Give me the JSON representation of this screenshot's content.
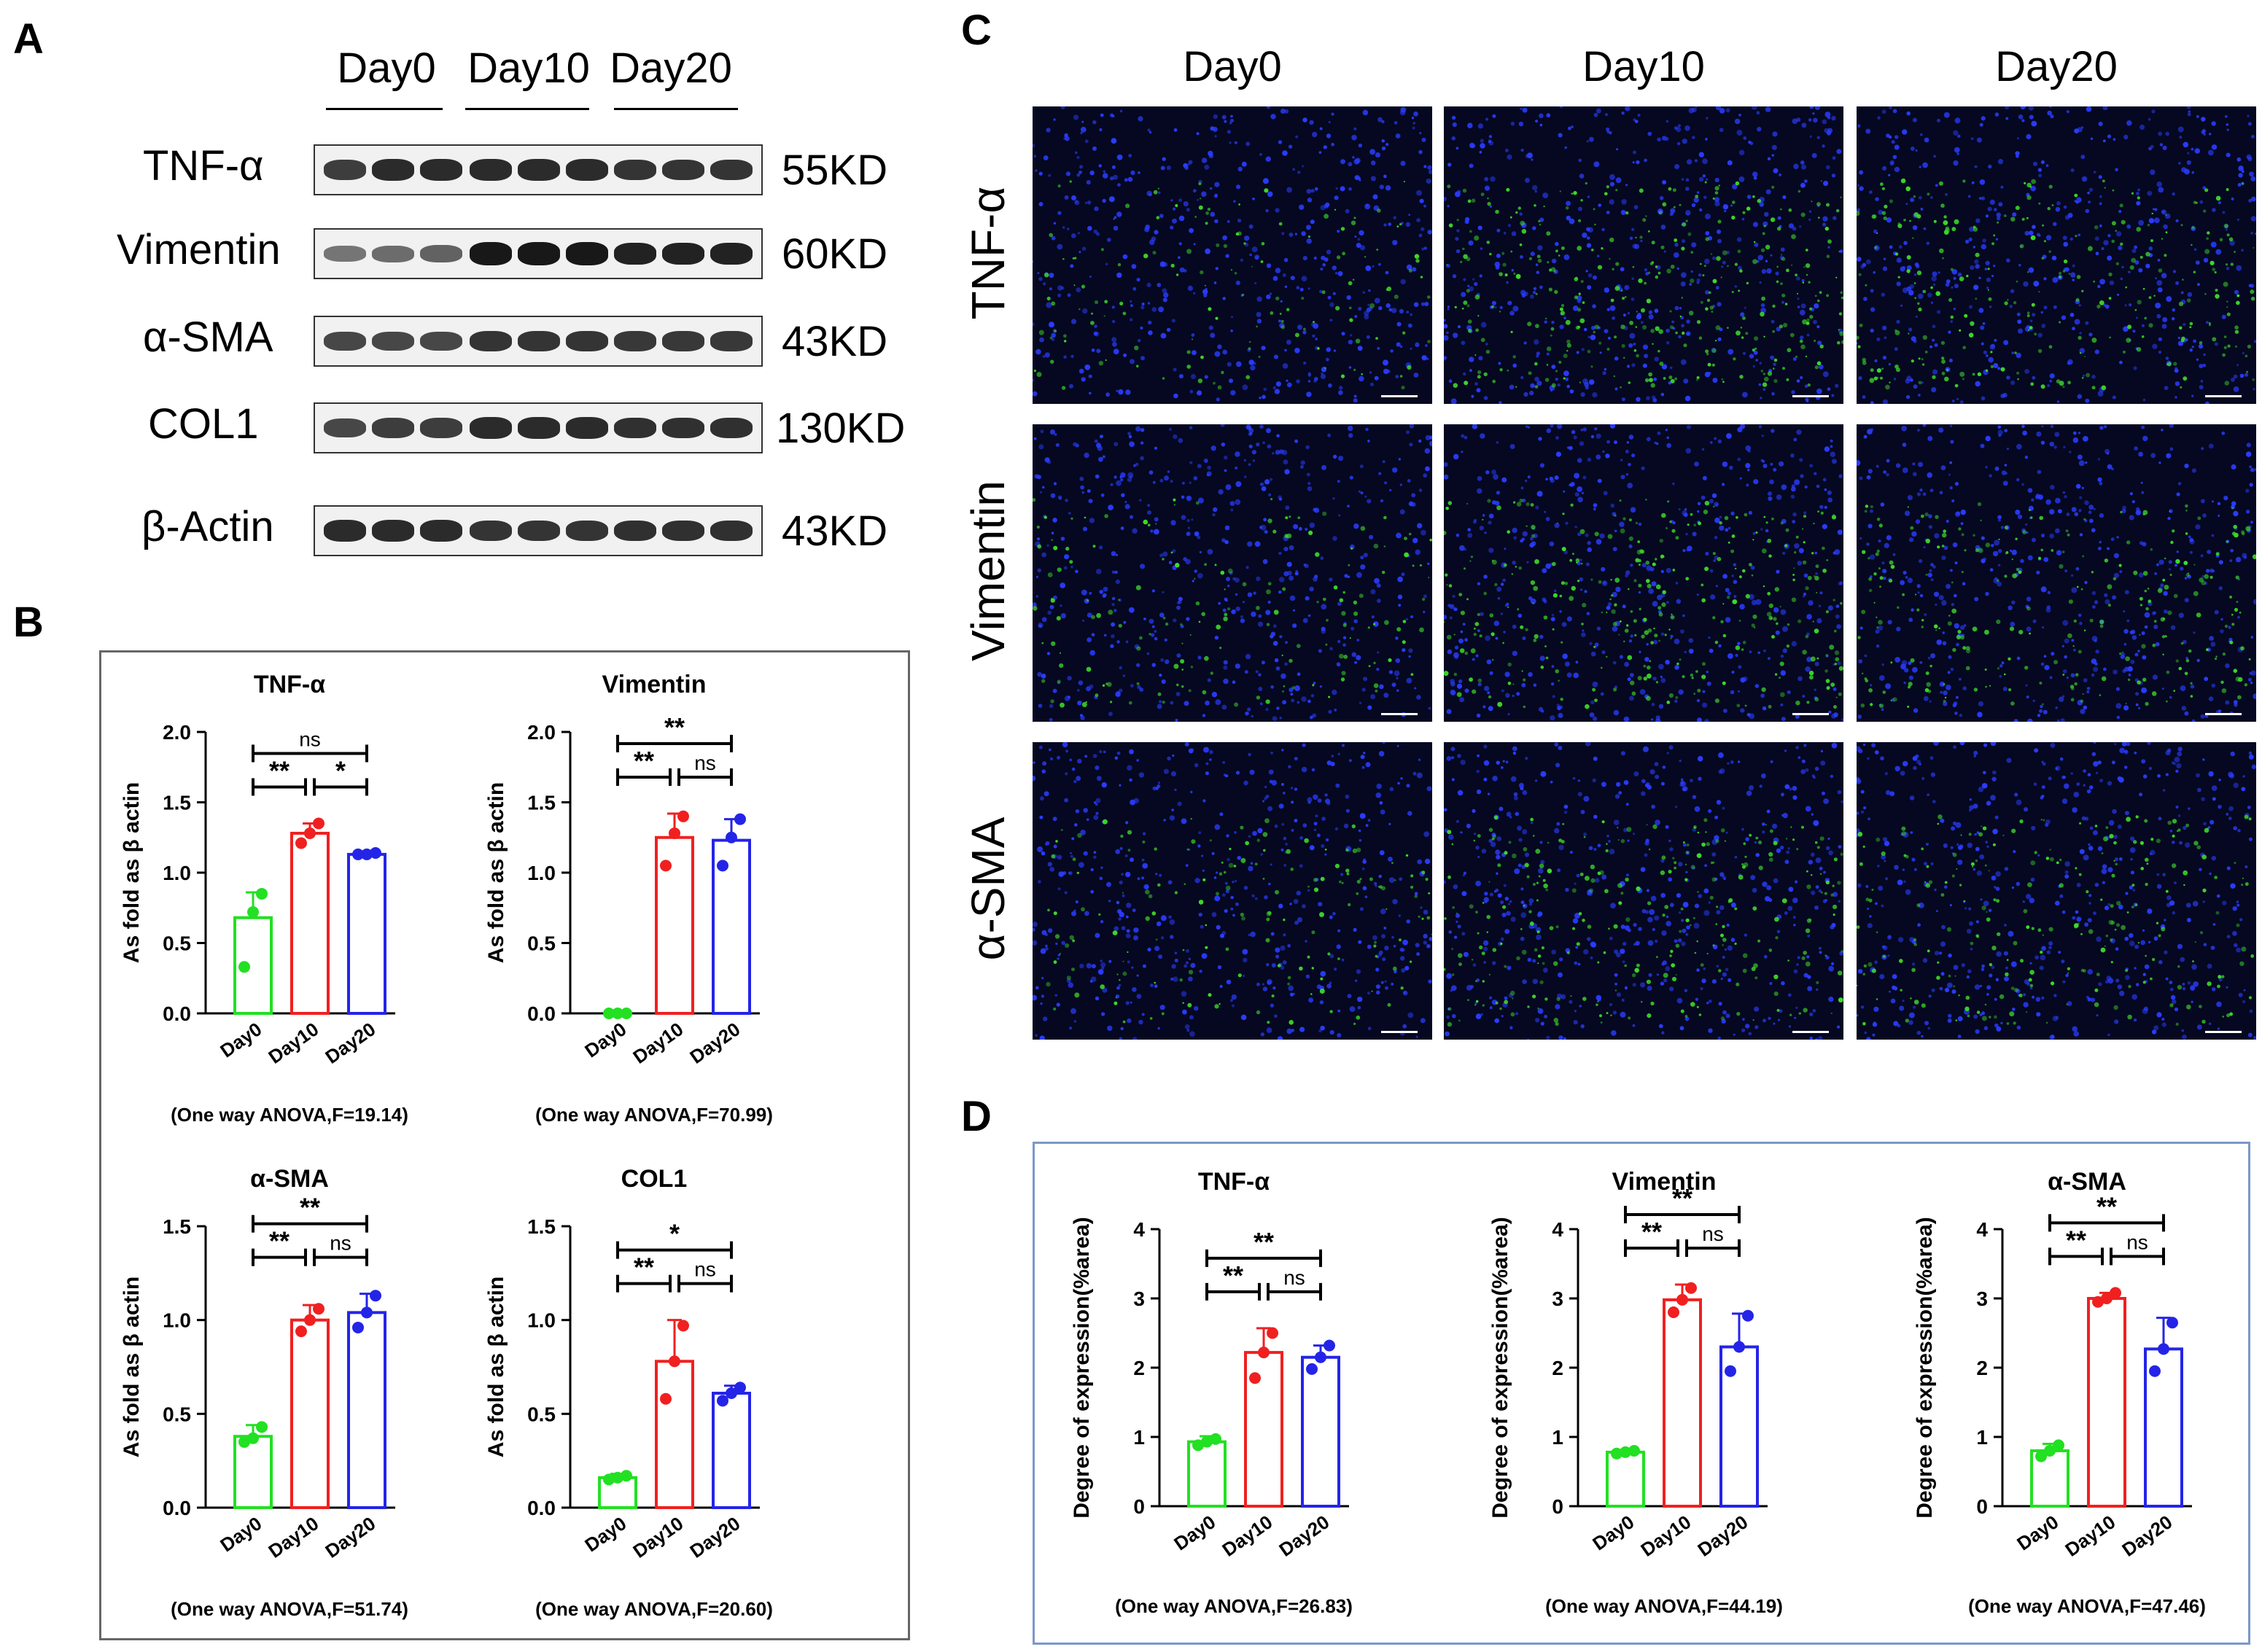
{
  "panels": {
    "a": "A",
    "b": "B",
    "c": "C",
    "d": "D"
  },
  "blot": {
    "days": [
      "Day0",
      "Day10",
      "Day20"
    ],
    "rows": [
      {
        "label": "TNF-α",
        "size": "55KD",
        "intensity": [
          0.75,
          0.85,
          0.85,
          0.85,
          0.85,
          0.85,
          0.8,
          0.8,
          0.8
        ]
      },
      {
        "label": "Vimentin",
        "size": "60KD",
        "intensity": [
          0.45,
          0.5,
          0.55,
          0.95,
          0.95,
          0.95,
          0.9,
          0.9,
          0.9
        ]
      },
      {
        "label": "α-SMA",
        "size": "43KD",
        "intensity": [
          0.7,
          0.7,
          0.7,
          0.8,
          0.8,
          0.8,
          0.78,
          0.78,
          0.78
        ]
      },
      {
        "label": "COL1",
        "size": "130KD",
        "intensity": [
          0.7,
          0.75,
          0.75,
          0.85,
          0.85,
          0.85,
          0.82,
          0.82,
          0.82
        ]
      },
      {
        "label": "β-Actin",
        "size": "43KD",
        "intensity": [
          0.85,
          0.85,
          0.85,
          0.8,
          0.8,
          0.8,
          0.82,
          0.82,
          0.82
        ]
      }
    ]
  },
  "micrographs": {
    "columns": [
      "Day0",
      "Day10",
      "Day20"
    ],
    "rows": [
      "TNF-α",
      "Vimentin",
      "α-SMA"
    ],
    "green_density": [
      [
        0.15,
        0.6,
        0.45
      ],
      [
        0.2,
        0.55,
        0.4
      ],
      [
        0.2,
        0.45,
        0.35
      ]
    ],
    "colors": {
      "nuclei": "#2a3cff",
      "marker": "#3ddc2a",
      "background": "#050820"
    }
  },
  "colors": {
    "day0": "#22e022",
    "day10": "#f02020",
    "day20": "#2424e8",
    "panel_border_b": "#666666",
    "panel_border_d": "#7a98c8"
  },
  "chart_data": [
    {
      "panel": "B",
      "type": "bar",
      "title": "TNF-α",
      "ylabel": "As fold as β actin",
      "categories": [
        "Day0",
        "Day10",
        "Day20"
      ],
      "values": [
        0.68,
        1.28,
        1.13
      ],
      "errors": [
        0.18,
        0.07,
        0.01
      ],
      "points": [
        [
          0.33,
          0.72,
          0.85
        ],
        [
          1.21,
          1.28,
          1.35
        ],
        [
          1.13,
          1.13,
          1.14
        ]
      ],
      "ylim": [
        0,
        2.0
      ],
      "yticks": [
        "0.0",
        "0.5",
        "1.0",
        "1.5",
        "2.0"
      ],
      "brackets": [
        {
          "from": 0,
          "to": 1,
          "label": "**",
          "level": 0
        },
        {
          "from": 1,
          "to": 2,
          "label": "*",
          "level": 0
        },
        {
          "from": 0,
          "to": 2,
          "label": "ns",
          "level": 1
        }
      ],
      "footer": "(One way ANOVA,F=19.14)"
    },
    {
      "panel": "B",
      "type": "bar",
      "title": "Vimentin",
      "ylabel": "As fold as β actin",
      "categories": [
        "Day0",
        "Day10",
        "Day20"
      ],
      "values": [
        0.0,
        1.25,
        1.23
      ],
      "errors": [
        0.0,
        0.17,
        0.15
      ],
      "points": [
        [
          0.0,
          0.0,
          0.0
        ],
        [
          1.05,
          1.28,
          1.4
        ],
        [
          1.05,
          1.25,
          1.38
        ]
      ],
      "ylim": [
        0,
        2.0
      ],
      "yticks": [
        "0.0",
        "0.5",
        "1.0",
        "1.5",
        "2.0"
      ],
      "brackets": [
        {
          "from": 0,
          "to": 1,
          "label": "**",
          "level": 0
        },
        {
          "from": 1,
          "to": 2,
          "label": "ns",
          "level": 0
        },
        {
          "from": 0,
          "to": 2,
          "label": "**",
          "level": 1
        }
      ],
      "footer": "(One way ANOVA,F=70.99)"
    },
    {
      "panel": "B",
      "type": "bar",
      "title": "α-SMA",
      "ylabel": "As fold as β actin",
      "categories": [
        "Day0",
        "Day10",
        "Day20"
      ],
      "values": [
        0.38,
        1.0,
        1.04
      ],
      "errors": [
        0.06,
        0.08,
        0.1
      ],
      "points": [
        [
          0.35,
          0.37,
          0.43
        ],
        [
          0.94,
          1.0,
          1.06
        ],
        [
          0.96,
          1.04,
          1.13
        ]
      ],
      "ylim": [
        0,
        1.5
      ],
      "yticks": [
        "0.0",
        "0.5",
        "1.0",
        "1.5"
      ],
      "brackets": [
        {
          "from": 0,
          "to": 1,
          "label": "**",
          "level": 0
        },
        {
          "from": 1,
          "to": 2,
          "label": "ns",
          "level": 0
        },
        {
          "from": 0,
          "to": 2,
          "label": "**",
          "level": 1
        }
      ],
      "footer": "(One way ANOVA,F=51.74)"
    },
    {
      "panel": "B",
      "type": "bar",
      "title": "COL1",
      "ylabel": "As fold as β actin",
      "categories": [
        "Day0",
        "Day10",
        "Day20"
      ],
      "values": [
        0.16,
        0.78,
        0.61
      ],
      "errors": [
        0.02,
        0.22,
        0.04
      ],
      "points": [
        [
          0.15,
          0.16,
          0.17
        ],
        [
          0.58,
          0.78,
          0.97
        ],
        [
          0.57,
          0.61,
          0.64
        ]
      ],
      "ylim": [
        0,
        1.5
      ],
      "yticks": [
        "0.0",
        "0.5",
        "1.0",
        "1.5"
      ],
      "brackets": [
        {
          "from": 0,
          "to": 1,
          "label": "**",
          "level": 0
        },
        {
          "from": 1,
          "to": 2,
          "label": "ns",
          "level": 0
        },
        {
          "from": 0,
          "to": 2,
          "label": "*",
          "level": 1
        }
      ],
      "footer": "(One way ANOVA,F=20.60)"
    },
    {
      "panel": "D",
      "type": "bar",
      "title": "TNF-α",
      "ylabel": "Degree of expression(%area)",
      "categories": [
        "Day0",
        "Day10",
        "Day20"
      ],
      "values": [
        0.93,
        2.22,
        2.15
      ],
      "errors": [
        0.08,
        0.35,
        0.17
      ],
      "points": [
        [
          0.88,
          0.93,
          0.97
        ],
        [
          1.85,
          2.22,
          2.5
        ],
        [
          1.98,
          2.15,
          2.32
        ]
      ],
      "ylim": [
        0,
        4
      ],
      "yticks": [
        "0",
        "1",
        "2",
        "3",
        "4"
      ],
      "brackets": [
        {
          "from": 0,
          "to": 1,
          "label": "**",
          "level": 0
        },
        {
          "from": 1,
          "to": 2,
          "label": "ns",
          "level": 0
        },
        {
          "from": 0,
          "to": 2,
          "label": "**",
          "level": 1
        }
      ],
      "footer": "(One way ANOVA,F=26.83)"
    },
    {
      "panel": "D",
      "type": "bar",
      "title": "Vimentin",
      "ylabel": "Degree of expression(%area)",
      "categories": [
        "Day0",
        "Day10",
        "Day20"
      ],
      "values": [
        0.78,
        2.98,
        2.3
      ],
      "errors": [
        0.03,
        0.22,
        0.48
      ],
      "points": [
        [
          0.76,
          0.78,
          0.8
        ],
        [
          2.8,
          2.98,
          3.15
        ],
        [
          1.95,
          2.3,
          2.75
        ]
      ],
      "ylim": [
        0,
        4
      ],
      "yticks": [
        "0",
        "1",
        "2",
        "3",
        "4"
      ],
      "brackets": [
        {
          "from": 0,
          "to": 1,
          "label": "**",
          "level": 0
        },
        {
          "from": 1,
          "to": 2,
          "label": "ns",
          "level": 0
        },
        {
          "from": 0,
          "to": 2,
          "label": "**",
          "level": 1
        }
      ],
      "footer": "(One way ANOVA,F=44.19)"
    },
    {
      "panel": "D",
      "type": "bar",
      "title": "α-SMA",
      "ylabel": "Degree of expression(%area)",
      "categories": [
        "Day0",
        "Day10",
        "Day20"
      ],
      "values": [
        0.8,
        3.0,
        2.27
      ],
      "errors": [
        0.1,
        0.08,
        0.45
      ],
      "points": [
        [
          0.72,
          0.8,
          0.88
        ],
        [
          2.95,
          3.0,
          3.08
        ],
        [
          1.95,
          2.27,
          2.65
        ]
      ],
      "ylim": [
        0,
        4
      ],
      "yticks": [
        "0",
        "1",
        "2",
        "3",
        "4"
      ],
      "brackets": [
        {
          "from": 0,
          "to": 1,
          "label": "**",
          "level": 0
        },
        {
          "from": 1,
          "to": 2,
          "label": "ns",
          "level": 0
        },
        {
          "from": 0,
          "to": 2,
          "label": "**",
          "level": 1
        }
      ],
      "footer": "(One way ANOVA,F=47.46)"
    }
  ]
}
